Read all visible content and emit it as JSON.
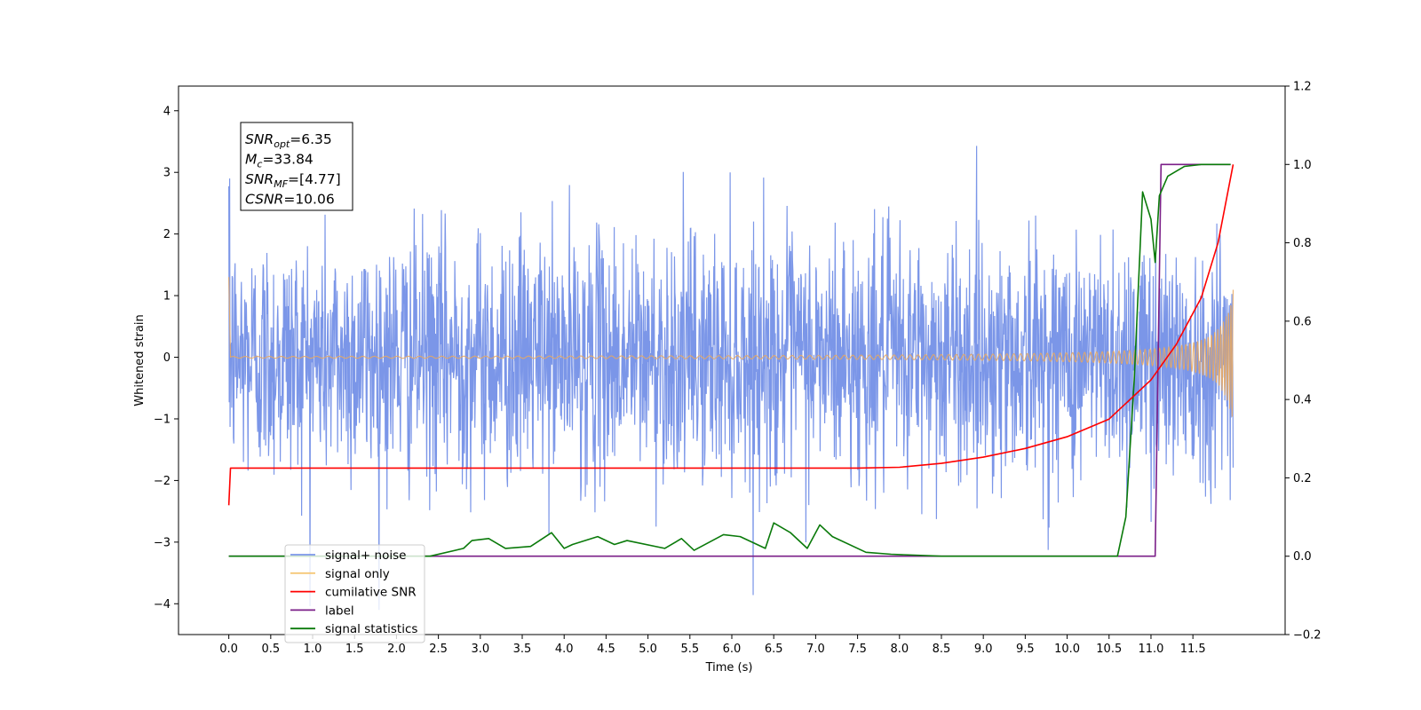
{
  "chart_data": {
    "type": "line",
    "xlabel": "Time (s)",
    "ylabel_left": "Whitened strain",
    "ylabel_right": "",
    "xlim": [
      -0.6,
      12.6
    ],
    "ylim_left": [
      -4.5,
      4.4
    ],
    "ylim_right": [
      -0.2,
      1.2
    ],
    "x_ticks": [
      "0.0",
      "0.5",
      "1.0",
      "1.5",
      "2.0",
      "2.5",
      "3.0",
      "3.5",
      "4.0",
      "4.5",
      "5.0",
      "5.5",
      "6.0",
      "6.5",
      "7.0",
      "7.5",
      "8.0",
      "8.5",
      "9.0",
      "9.5",
      "10.0",
      "10.5",
      "11.0",
      "11.5"
    ],
    "y_ticks_left": [
      "4",
      "3",
      "2",
      "1",
      "0",
      "−1",
      "−2",
      "−3",
      "−4"
    ],
    "y_ticks_right": [
      "1.2",
      "1.0",
      "0.8",
      "0.6",
      "0.4",
      "0.2",
      "0.0",
      "−0.2"
    ],
    "grid": false,
    "legend_position": "lower-left",
    "annotation": {
      "lines": [
        {
          "base": "SNR",
          "sub": "opt",
          "value": "=6.35"
        },
        {
          "base": "M",
          "sub": "c",
          "value": "=33.84"
        },
        {
          "base": "SNR",
          "sub": "MF",
          "value": "=[4.77]"
        },
        {
          "base": "CSNR",
          "sub": "",
          "value": "=10.06"
        }
      ]
    },
    "series": [
      {
        "name": "signal+ noise",
        "axis": "left",
        "color": "#7b96e8",
        "description": "white noise with std about 1.0, spikes up to about 4.0 and down to about -4.1",
        "x_range": [
          0.0,
          11.98
        ],
        "noise_std": 1.0,
        "min": -4.1,
        "max": 4.0
      },
      {
        "name": "signal only",
        "axis": "left",
        "color": "#e8a862",
        "description": "chirp signal, amplitude near 0 until about 7 s, growing to about 1.1 at 11.98 s",
        "x_range": [
          0.0,
          11.98
        ],
        "amplitude_end": 1.1
      },
      {
        "name": "cumilative SNR",
        "axis": "right",
        "color": "#ff0000",
        "x": [
          0.0,
          0.02,
          3.0,
          7.5,
          8.0,
          8.5,
          9.0,
          9.5,
          10.0,
          10.5,
          11.0,
          11.3,
          11.6,
          11.8,
          11.98
        ],
        "y": [
          0.13,
          0.225,
          0.225,
          0.225,
          0.227,
          0.237,
          0.253,
          0.275,
          0.305,
          0.35,
          0.45,
          0.54,
          0.66,
          0.8,
          1.0
        ]
      },
      {
        "name": "label",
        "axis": "right",
        "color": "#7b1f88",
        "x": [
          0.0,
          11.05,
          11.12,
          11.95
        ],
        "y": [
          0.0,
          0.0,
          1.0,
          1.0
        ]
      },
      {
        "name": "signal statistics",
        "axis": "right",
        "color": "#0a7a0a",
        "x": [
          0.0,
          2.4,
          2.8,
          2.9,
          3.1,
          3.3,
          3.6,
          3.85,
          4.0,
          4.1,
          4.4,
          4.6,
          4.75,
          5.2,
          5.4,
          5.55,
          5.9,
          6.1,
          6.4,
          6.5,
          6.7,
          6.9,
          7.05,
          7.2,
          7.6,
          7.9,
          8.5,
          9.0,
          9.9,
          10.6,
          10.7,
          10.8,
          10.9,
          11.0,
          11.05,
          11.1,
          11.2,
          11.4,
          11.6,
          11.95
        ],
        "y": [
          0.0,
          0.0,
          0.02,
          0.04,
          0.045,
          0.02,
          0.025,
          0.06,
          0.02,
          0.03,
          0.05,
          0.03,
          0.04,
          0.02,
          0.045,
          0.015,
          0.055,
          0.05,
          0.02,
          0.085,
          0.06,
          0.02,
          0.08,
          0.05,
          0.01,
          0.005,
          0.0,
          0.0,
          0.0,
          0.0,
          0.1,
          0.45,
          0.93,
          0.86,
          0.75,
          0.92,
          0.97,
          0.995,
          1.0,
          1.0
        ]
      }
    ],
    "legend": [
      {
        "label": "signal+ noise",
        "color": "#7b96e8"
      },
      {
        "label": "signal only",
        "color": "#f5c878"
      },
      {
        "label": "cumilative SNR",
        "color": "#ff0000"
      },
      {
        "label": "label",
        "color": "#7b1f88"
      },
      {
        "label": "signal statistics",
        "color": "#0a7a0a"
      }
    ]
  }
}
